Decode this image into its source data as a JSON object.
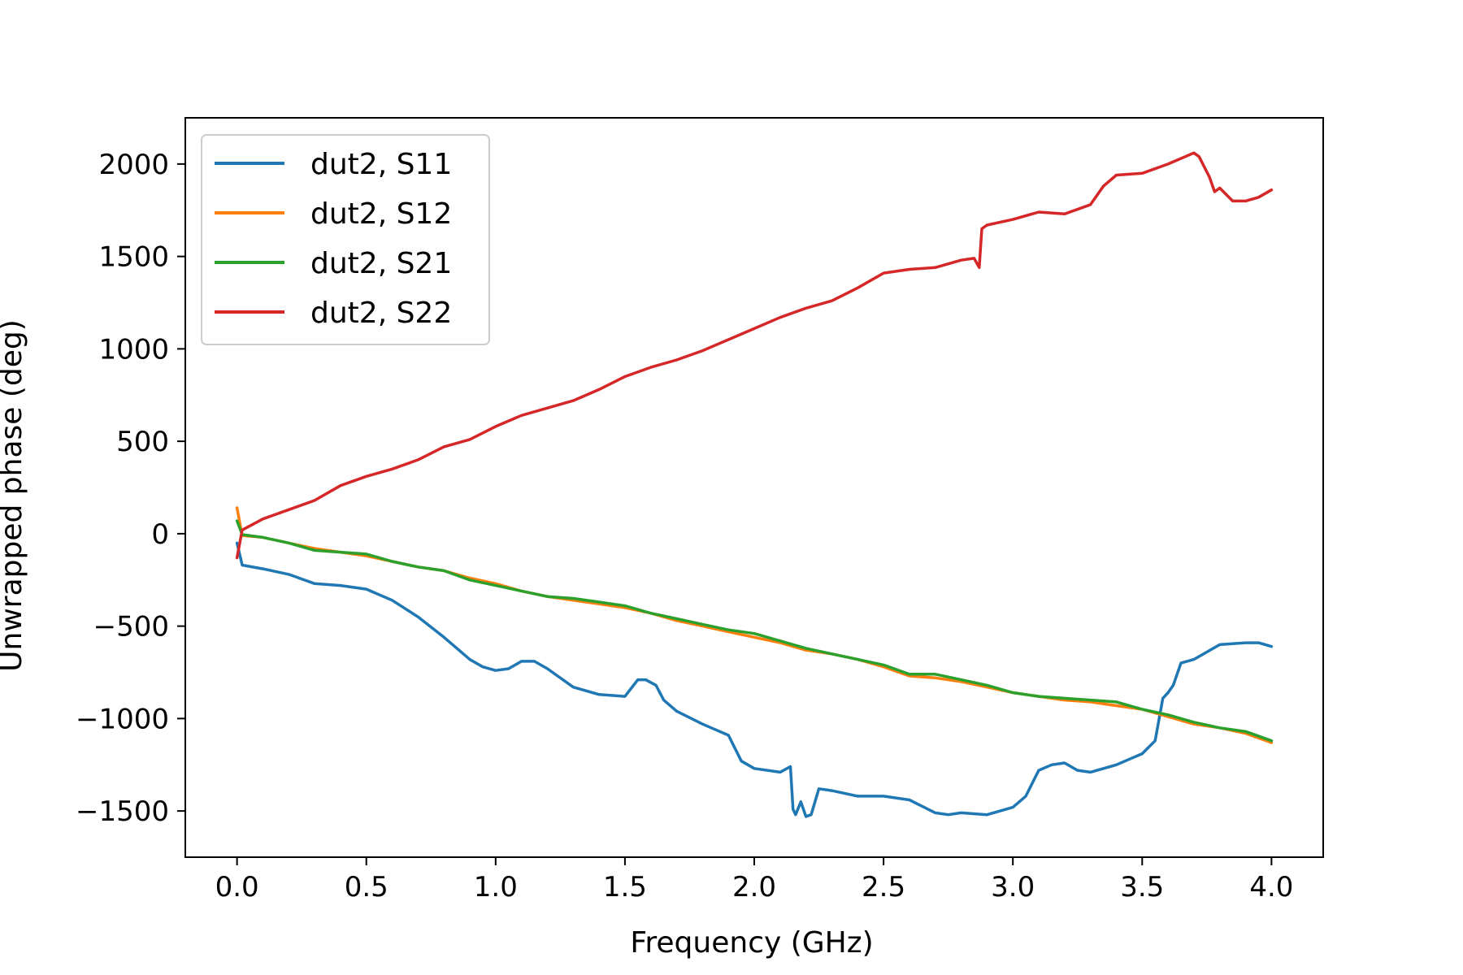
{
  "chart_data": {
    "type": "line",
    "title": "",
    "xlabel": "Frequency (GHz)",
    "ylabel": "Unwrapped phase (deg)",
    "xlim": [
      -0.2,
      4.2
    ],
    "ylim": [
      -1750,
      2250
    ],
    "xticks": [
      0.0,
      0.5,
      1.0,
      1.5,
      2.0,
      2.5,
      3.0,
      3.5,
      4.0
    ],
    "xtick_labels": [
      "0.0",
      "0.5",
      "1.0",
      "1.5",
      "2.0",
      "2.5",
      "3.0",
      "3.5",
      "4.0"
    ],
    "yticks": [
      -1500,
      -1000,
      -500,
      0,
      500,
      1000,
      1500,
      2000
    ],
    "ytick_labels": [
      "−1500",
      "−1000",
      "−500",
      "0",
      "500",
      "1000",
      "1500",
      "2000"
    ],
    "grid": false,
    "legend_position": "top-left",
    "series": [
      {
        "name": "dut2, S11",
        "color": "#1f77b4",
        "x": [
          0.0,
          0.02,
          0.1,
          0.2,
          0.3,
          0.4,
          0.5,
          0.6,
          0.7,
          0.8,
          0.9,
          0.95,
          1.0,
          1.05,
          1.1,
          1.15,
          1.2,
          1.3,
          1.4,
          1.5,
          1.55,
          1.58,
          1.62,
          1.65,
          1.7,
          1.8,
          1.9,
          1.95,
          2.0,
          2.1,
          2.14,
          2.15,
          2.16,
          2.18,
          2.2,
          2.22,
          2.25,
          2.3,
          2.4,
          2.5,
          2.6,
          2.7,
          2.75,
          2.8,
          2.9,
          3.0,
          3.05,
          3.1,
          3.15,
          3.2,
          3.25,
          3.3,
          3.4,
          3.5,
          3.55,
          3.58,
          3.6,
          3.62,
          3.65,
          3.7,
          3.8,
          3.9,
          3.95,
          4.0
        ],
        "y": [
          -50,
          -170,
          -190,
          -220,
          -270,
          -280,
          -300,
          -360,
          -450,
          -560,
          -680,
          -720,
          -740,
          -730,
          -690,
          -690,
          -730,
          -830,
          -870,
          -880,
          -790,
          -790,
          -820,
          -900,
          -960,
          -1030,
          -1090,
          -1230,
          -1270,
          -1290,
          -1260,
          -1490,
          -1520,
          -1450,
          -1530,
          -1520,
          -1380,
          -1390,
          -1420,
          -1420,
          -1440,
          -1510,
          -1520,
          -1510,
          -1520,
          -1480,
          -1420,
          -1280,
          -1250,
          -1240,
          -1280,
          -1290,
          -1250,
          -1190,
          -1120,
          -890,
          -860,
          -820,
          -700,
          -680,
          -600,
          -590,
          -590,
          -610
        ]
      },
      {
        "name": "dut2, S12",
        "color": "#ff7f0e",
        "x": [
          0.0,
          0.02,
          0.1,
          0.2,
          0.3,
          0.4,
          0.5,
          0.6,
          0.7,
          0.8,
          0.9,
          1.0,
          1.1,
          1.2,
          1.3,
          1.4,
          1.5,
          1.6,
          1.7,
          1.8,
          1.9,
          2.0,
          2.1,
          2.2,
          2.3,
          2.4,
          2.5,
          2.6,
          2.7,
          2.8,
          2.9,
          3.0,
          3.1,
          3.2,
          3.3,
          3.4,
          3.5,
          3.6,
          3.7,
          3.8,
          3.9,
          4.0
        ],
        "y": [
          140,
          -10,
          -20,
          -50,
          -80,
          -100,
          -120,
          -150,
          -180,
          -200,
          -240,
          -270,
          -310,
          -340,
          -360,
          -380,
          -400,
          -430,
          -470,
          -500,
          -530,
          -560,
          -590,
          -630,
          -650,
          -680,
          -720,
          -770,
          -780,
          -800,
          -830,
          -860,
          -880,
          -900,
          -910,
          -930,
          -950,
          -990,
          -1030,
          -1050,
          -1080,
          -1130
        ]
      },
      {
        "name": "dut2, S21",
        "color": "#2ca02c",
        "x": [
          0.0,
          0.02,
          0.1,
          0.2,
          0.3,
          0.4,
          0.5,
          0.6,
          0.7,
          0.8,
          0.9,
          1.0,
          1.1,
          1.2,
          1.3,
          1.4,
          1.5,
          1.6,
          1.7,
          1.8,
          1.9,
          2.0,
          2.1,
          2.2,
          2.3,
          2.4,
          2.5,
          2.6,
          2.7,
          2.8,
          2.9,
          3.0,
          3.1,
          3.2,
          3.3,
          3.4,
          3.5,
          3.6,
          3.7,
          3.8,
          3.9,
          4.0
        ],
        "y": [
          70,
          -5,
          -20,
          -50,
          -90,
          -100,
          -110,
          -150,
          -180,
          -200,
          -250,
          -280,
          -310,
          -340,
          -350,
          -370,
          -390,
          -430,
          -460,
          -490,
          -520,
          -540,
          -580,
          -620,
          -650,
          -680,
          -710,
          -760,
          -760,
          -790,
          -820,
          -860,
          -880,
          -890,
          -900,
          -910,
          -950,
          -980,
          -1020,
          -1050,
          -1070,
          -1120
        ]
      },
      {
        "name": "dut2, S22",
        "color": "#d62728",
        "x": [
          0.0,
          0.02,
          0.1,
          0.2,
          0.3,
          0.4,
          0.5,
          0.6,
          0.7,
          0.8,
          0.9,
          1.0,
          1.1,
          1.2,
          1.3,
          1.4,
          1.5,
          1.6,
          1.7,
          1.8,
          1.9,
          2.0,
          2.1,
          2.2,
          2.3,
          2.4,
          2.5,
          2.6,
          2.7,
          2.8,
          2.85,
          2.87,
          2.88,
          2.9,
          3.0,
          3.1,
          3.2,
          3.3,
          3.35,
          3.4,
          3.5,
          3.6,
          3.7,
          3.72,
          3.76,
          3.78,
          3.8,
          3.85,
          3.9,
          3.95,
          4.0
        ],
        "y": [
          -130,
          20,
          80,
          130,
          180,
          260,
          310,
          350,
          400,
          470,
          510,
          580,
          640,
          680,
          720,
          780,
          850,
          900,
          940,
          990,
          1050,
          1110,
          1170,
          1220,
          1260,
          1330,
          1410,
          1430,
          1440,
          1480,
          1490,
          1440,
          1650,
          1670,
          1700,
          1740,
          1730,
          1780,
          1880,
          1940,
          1950,
          2000,
          2060,
          2040,
          1930,
          1850,
          1870,
          1800,
          1800,
          1820,
          1860
        ]
      }
    ]
  }
}
